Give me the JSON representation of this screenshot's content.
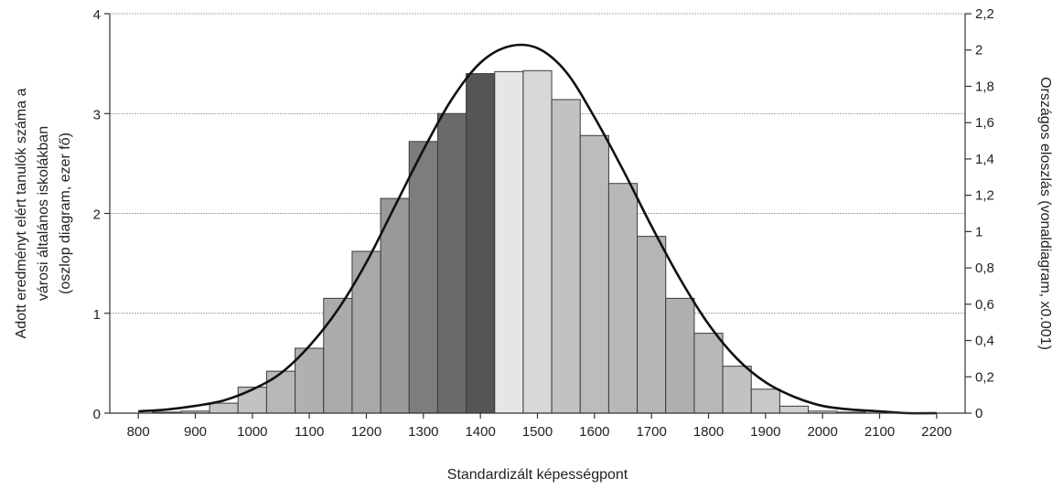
{
  "chart_data": {
    "type": "bar",
    "xlabel": "Standardizált képességpont",
    "ylabel_left": [
      "Adott eredményt elért tanulók száma a",
      "városi általános iskolákban",
      "(oszlop diagram, ezer fő)"
    ],
    "ylabel_right": "Országos eloszlás (vonaldiagram, x0.001)",
    "x_ticks": [
      "800",
      "900",
      "1000",
      "1100",
      "1200",
      "1300",
      "1400",
      "1500",
      "1600",
      "1700",
      "1800",
      "1900",
      "2000",
      "2100",
      "2200"
    ],
    "y_left_ticks": [
      "0",
      "1",
      "2",
      "3",
      "4"
    ],
    "y_right_ticks": [
      "0",
      "0,2",
      "0,4",
      "0,6",
      "0,8",
      "1",
      "1,2",
      "1,4",
      "1,6",
      "1,8",
      "2",
      "2,2"
    ],
    "ylim_left": [
      0,
      4
    ],
    "ylim_right": [
      0,
      2.2
    ],
    "xlim": [
      750,
      2250
    ],
    "bar_width": 50,
    "grid": "horizontal",
    "bars": {
      "x": [
        800,
        850,
        900,
        950,
        1000,
        1050,
        1100,
        1150,
        1200,
        1250,
        1300,
        1350,
        1400,
        1450,
        1500,
        1550,
        1600,
        1650,
        1700,
        1750,
        1800,
        1850,
        1900,
        1950,
        2000,
        2050,
        2100,
        2150,
        2200
      ],
      "values": [
        0.0,
        0.01,
        0.02,
        0.1,
        0.26,
        0.42,
        0.65,
        1.15,
        1.62,
        2.15,
        2.72,
        3.0,
        3.4,
        3.42,
        3.43,
        3.14,
        2.78,
        2.3,
        1.77,
        1.15,
        0.8,
        0.47,
        0.24,
        0.07,
        0.02,
        0.01,
        0.0,
        0.0,
        0.0
      ],
      "shades": [
        "#d0d0d0",
        "#c8c8c8",
        "#c8c8c8",
        "#c4c4c4",
        "#c2c2c2",
        "#b8b8b8",
        "#b0b0b0",
        "#ababab",
        "#a8a8a8",
        "#999999",
        "#7d7d7d",
        "#6a6a6a",
        "#555555",
        "#e6e6e6",
        "#d8d8d8",
        "#c2c2c2",
        "#bcbcbc",
        "#b8b8b8",
        "#b5b5b5",
        "#b0b0b0",
        "#b8b8b8",
        "#c2c2c2",
        "#c8c8c8",
        "#d0d0d0",
        "#d8d8d8",
        "#dddddd",
        "#e0e0e0",
        "#e0e0e0",
        "#e0e0e0"
      ]
    },
    "line": {
      "axis": "right",
      "x": [
        800,
        850,
        900,
        950,
        1000,
        1050,
        1100,
        1150,
        1200,
        1250,
        1300,
        1350,
        1400,
        1450,
        1500,
        1550,
        1600,
        1650,
        1700,
        1750,
        1800,
        1850,
        1900,
        1950,
        2000,
        2050,
        2100,
        2150,
        2200
      ],
      "values": [
        0.01,
        0.02,
        0.04,
        0.07,
        0.13,
        0.22,
        0.37,
        0.57,
        0.83,
        1.14,
        1.45,
        1.73,
        1.93,
        2.02,
        2.01,
        1.88,
        1.63,
        1.34,
        1.03,
        0.74,
        0.49,
        0.3,
        0.17,
        0.09,
        0.04,
        0.02,
        0.01,
        0.0,
        0.0
      ]
    }
  }
}
